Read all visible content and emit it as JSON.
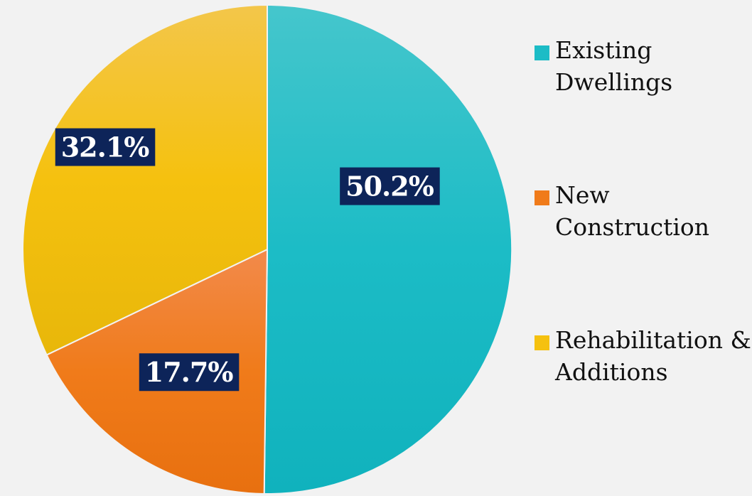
{
  "chart_data": {
    "type": "pie",
    "title": "",
    "slices": [
      {
        "name": "Existing Dwellings",
        "legend_lines": [
          "Existing",
          "Dwellings"
        ],
        "value": 50.2,
        "label": "50.2%",
        "color": "#1cbcc6",
        "color_light": "#45c6cc",
        "color_dark": "#10b2bd"
      },
      {
        "name": "New Construction",
        "legend_lines": [
          "New",
          "Construction"
        ],
        "value": 17.7,
        "label": "17.7%",
        "color": "#f07b1a",
        "color_light": "#f28a4b",
        "color_dark": "#e8700f"
      },
      {
        "name": "Rehabilitation & Additions",
        "legend_lines": [
          "Rehabilitation &",
          "Additions"
        ],
        "value": 32.1,
        "label": "32.1%",
        "color": "#f5c10f",
        "color_light": "#f3c64a",
        "color_dark": "#e8b70a"
      }
    ],
    "legend_position": "right",
    "start_angle_deg": 0,
    "direction": "clockwise",
    "label_color": "#0d2459"
  }
}
